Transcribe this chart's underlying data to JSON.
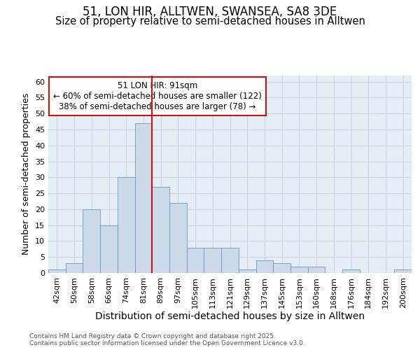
{
  "title_line1": "51, LON HIR, ALLTWEN, SWANSEA, SA8 3DE",
  "title_line2": "Size of property relative to semi-detached houses in Alltwen",
  "xlabel": "Distribution of semi-detached houses by size in Alltwen",
  "ylabel": "Number of semi-detached properties",
  "categories": [
    "42sqm",
    "50sqm",
    "58sqm",
    "66sqm",
    "74sqm",
    "81sqm",
    "89sqm",
    "97sqm",
    "105sqm",
    "113sqm",
    "121sqm",
    "129sqm",
    "137sqm",
    "145sqm",
    "153sqm",
    "160sqm",
    "168sqm",
    "176sqm",
    "184sqm",
    "192sqm",
    "200sqm"
  ],
  "values": [
    1,
    3,
    20,
    15,
    30,
    47,
    27,
    22,
    8,
    8,
    8,
    1,
    4,
    3,
    2,
    2,
    0,
    1,
    0,
    0,
    1
  ],
  "bar_color": "#ccd9e8",
  "bar_edge_color": "#7098b8",
  "grid_color": "#c8d4e4",
  "bg_color": "#e4ecf4",
  "vline_color": "#cc1111",
  "annotation_text": "51 LON HIR: 91sqm\n← 60% of semi-detached houses are smaller (122)\n38% of semi-detached houses are larger (78) →",
  "annotation_box_color": "#cc1111",
  "ylim": [
    0,
    62
  ],
  "yticks": [
    0,
    5,
    10,
    15,
    20,
    25,
    30,
    35,
    40,
    45,
    50,
    55,
    60
  ],
  "footer": "Contains HM Land Registry data © Crown copyright and database right 2025.\nContains public sector information licensed under the Open Government Licence v3.0.",
  "title_fontsize": 12,
  "subtitle_fontsize": 10.5,
  "xlabel_fontsize": 10,
  "ylabel_fontsize": 9,
  "tick_fontsize": 8,
  "annotation_fontsize": 8.5,
  "footer_fontsize": 6.5,
  "vline_index": 6
}
